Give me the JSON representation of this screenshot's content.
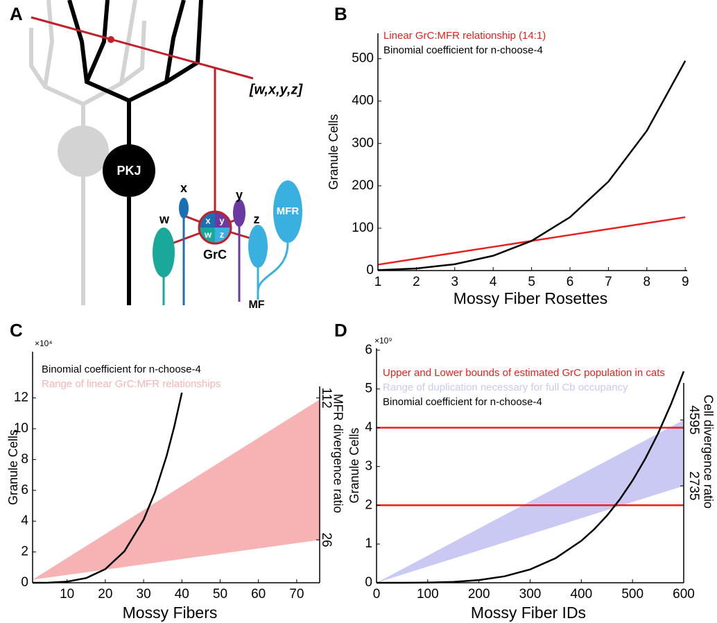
{
  "diagram": {
    "panel": "A",
    "input_label": "[w,x,y,z]",
    "cell_labels": {
      "pkj": "PKJ",
      "grc": "GrC",
      "mfr": "MFR",
      "mf": "MF"
    },
    "fiber_labels": [
      "w",
      "x",
      "y",
      "z"
    ],
    "grc_quadrants": [
      "x",
      "y",
      "w",
      "z"
    ]
  },
  "chart_data": [
    {
      "panel": "B",
      "type": "line",
      "xlabel": "Mossy Fiber Rosettes",
      "ylabel": "Granule Cells",
      "x": [
        1,
        2,
        3,
        4,
        5,
        6,
        7,
        8,
        9
      ],
      "series": [
        {
          "name": "Linear GrC:MFR relationship (14:1)",
          "color": "#e8201e",
          "values": [
            14,
            28,
            42,
            56,
            70,
            84,
            98,
            112,
            126
          ]
        },
        {
          "name": "Binomial coefficient for n-choose-4",
          "color": "#000000",
          "values": [
            1,
            5,
            15,
            35,
            70,
            126,
            210,
            330,
            495
          ]
        }
      ],
      "xlim": [
        1,
        9.05
      ],
      "ylim": [
        0,
        560
      ],
      "xticks": [
        1,
        2,
        3,
        4,
        5,
        6,
        7,
        8,
        9
      ],
      "yticks": [
        0,
        100,
        200,
        300,
        400,
        500
      ]
    },
    {
      "panel": "C",
      "type": "line",
      "xlabel": "Mossy Fibers",
      "ylabel": "Granule Cells",
      "y_multiplier": "×10⁴",
      "y2label": "MFR divergence ratio",
      "series": [
        {
          "name": "Binomial coefficient for n-choose-4",
          "color": "#000000",
          "x": [
            1,
            5,
            10,
            15,
            20,
            25,
            30,
            33,
            36,
            38,
            40
          ],
          "values": [
            0.0001,
            0.007,
            0.0715,
            0.306,
            0.8855,
            2.0475,
            4.092,
            5.8905,
            8.2251,
            10.127,
            12.341
          ]
        },
        {
          "name": "Range of linear GrC:MFR relationships",
          "type": "area",
          "color": "#f7b3b3",
          "x": [
            1,
            76
          ],
          "values": [
            0.2,
            11.9
          ],
          "lower": [
            0.2,
            2.78
          ]
        }
      ],
      "xlim": [
        1,
        76
      ],
      "ylim": [
        0,
        15
      ],
      "xticks": [
        10,
        20,
        30,
        40,
        50,
        60,
        70
      ],
      "yticks": [
        0,
        2,
        4,
        6,
        8,
        10,
        12
      ],
      "y2lim": [
        0,
        140
      ],
      "y2ticks": [
        26,
        112
      ]
    },
    {
      "panel": "D",
      "type": "line",
      "xlabel": "Mossy Fiber IDs",
      "ylabel": "Granule Cells",
      "y_multiplier": "×10⁹",
      "y2label": "Cell divergence ratio",
      "series": [
        {
          "name": "Upper and Lower bounds of estimated GrC population in cats",
          "type": "hline",
          "color": "#e8201e",
          "values": [
            2,
            4
          ]
        },
        {
          "name": "Range of duplication necessary for full Cb occupancy",
          "type": "area",
          "color": "#c9c9f4",
          "x": [
            0,
            600
          ],
          "values": [
            0,
            4.2
          ],
          "lower": [
            0,
            2.5
          ]
        },
        {
          "name": "Binomial coefficient for n-choose-4",
          "color": "#000000",
          "x": [
            0,
            50,
            100,
            150,
            200,
            250,
            300,
            350,
            400,
            425,
            450,
            475,
            500,
            525,
            550,
            575,
            600
          ],
          "values": [
            0,
            0.0003,
            0.0044,
            0.0219,
            0.0687,
            0.1667,
            0.344,
            0.636,
            1.083,
            1.379,
            1.731,
            2.148,
            2.636,
            3.202,
            3.854,
            4.602,
            5.454
          ]
        }
      ],
      "xlim": [
        0,
        600
      ],
      "ylim": [
        0,
        6.05
      ],
      "xticks": [
        0,
        100,
        200,
        300,
        400,
        500,
        600
      ],
      "yticks": [
        0,
        1,
        2,
        3,
        4,
        5,
        6
      ],
      "y2lim": [
        0,
        6619
      ],
      "y2ticks": [
        2735,
        4595
      ]
    }
  ]
}
